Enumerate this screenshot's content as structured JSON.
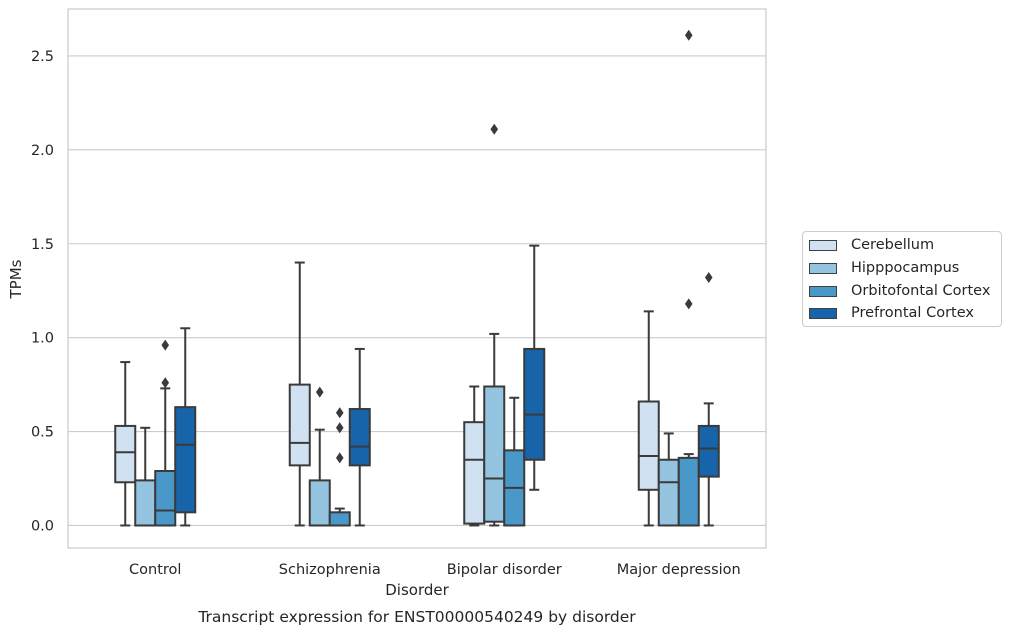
{
  "chart_data": {
    "type": "box",
    "title": "",
    "caption": "Transcript expression for ENST00000540249 by disorder",
    "xlabel": "Disorder",
    "ylabel": "TPMs",
    "ylim": [
      -0.12,
      2.75
    ],
    "yticks": [
      0.0,
      0.5,
      1.0,
      1.5,
      2.0,
      2.5
    ],
    "ytick_labels": [
      "0.0",
      "0.5",
      "1.0",
      "1.5",
      "2.0",
      "2.5"
    ],
    "grid": "horizontal",
    "legend_position": "right",
    "categories": [
      "Control",
      "Schizophrenia",
      "Bipolar disorder",
      "Major depression"
    ],
    "series": [
      {
        "name": "Cerebellum",
        "color": "#d0e1f2",
        "boxes": [
          {
            "min": 0.0,
            "q1": 0.23,
            "median": 0.39,
            "q3": 0.53,
            "max": 0.87,
            "outliers": []
          },
          {
            "min": 0.0,
            "q1": 0.32,
            "median": 0.44,
            "q3": 0.75,
            "max": 1.4,
            "outliers": []
          },
          {
            "min": 0.0,
            "q1": 0.01,
            "median": 0.35,
            "q3": 0.55,
            "max": 0.74,
            "outliers": []
          },
          {
            "min": 0.0,
            "q1": 0.19,
            "median": 0.37,
            "q3": 0.66,
            "max": 1.14,
            "outliers": []
          }
        ]
      },
      {
        "name": "Hipppocampus",
        "color": "#94c4df",
        "boxes": [
          {
            "min": 0.0,
            "q1": 0.0,
            "median": 0.0,
            "q3": 0.24,
            "max": 0.52,
            "outliers": []
          },
          {
            "min": 0.0,
            "q1": 0.0,
            "median": 0.0,
            "q3": 0.24,
            "max": 0.51,
            "outliers": [
              0.71
            ]
          },
          {
            "min": 0.0,
            "q1": 0.02,
            "median": 0.25,
            "q3": 0.74,
            "max": 1.02,
            "outliers": [
              2.11
            ]
          },
          {
            "min": 0.0,
            "q1": 0.0,
            "median": 0.23,
            "q3": 0.35,
            "max": 0.49,
            "outliers": []
          }
        ]
      },
      {
        "name": "Orbitofontal Cortex",
        "color": "#4a98c9",
        "boxes": [
          {
            "min": 0.0,
            "q1": 0.0,
            "median": 0.08,
            "q3": 0.29,
            "max": 0.73,
            "outliers": [
              0.76,
              0.96
            ]
          },
          {
            "min": 0.0,
            "q1": 0.0,
            "median": 0.0,
            "q3": 0.07,
            "max": 0.09,
            "outliers": [
              0.36,
              0.52,
              0.6
            ]
          },
          {
            "min": 0.0,
            "q1": 0.0,
            "median": 0.2,
            "q3": 0.4,
            "max": 0.68,
            "outliers": []
          },
          {
            "min": 0.0,
            "q1": 0.0,
            "median": 0.0,
            "q3": 0.36,
            "max": 0.38,
            "outliers": [
              1.18,
              2.61
            ]
          }
        ]
      },
      {
        "name": "Prefrontal Cortex",
        "color": "#1764ab",
        "boxes": [
          {
            "min": 0.0,
            "q1": 0.07,
            "median": 0.43,
            "q3": 0.63,
            "max": 1.05,
            "outliers": []
          },
          {
            "min": 0.0,
            "q1": 0.32,
            "median": 0.42,
            "q3": 0.62,
            "max": 0.94,
            "outliers": []
          },
          {
            "min": 0.19,
            "q1": 0.35,
            "median": 0.59,
            "q3": 0.94,
            "max": 1.49,
            "outliers": []
          },
          {
            "min": 0.0,
            "q1": 0.26,
            "median": 0.41,
            "q3": 0.53,
            "max": 0.65,
            "outliers": [
              1.32
            ]
          }
        ]
      }
    ]
  }
}
